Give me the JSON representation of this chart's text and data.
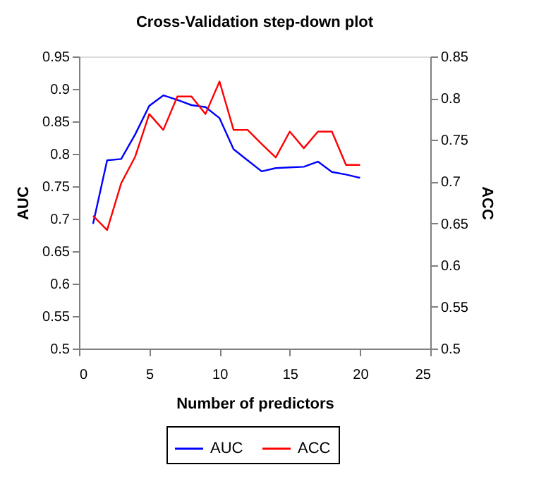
{
  "chart_data": {
    "type": "line",
    "title": "Cross-Validation step-down plot",
    "xlabel": "Number of predictors",
    "ylabel": "AUC",
    "y2label": "ACC",
    "x": [
      1,
      2,
      3,
      4,
      5,
      6,
      7,
      8,
      9,
      10,
      11,
      12,
      13,
      14,
      15,
      16,
      17,
      18,
      19,
      20
    ],
    "series": [
      {
        "name": "AUC",
        "color": "#0000ff",
        "values": [
          0.692,
          0.79,
          0.792,
          0.83,
          0.874,
          0.89,
          0.883,
          0.875,
          0.872,
          0.855,
          0.807,
          0.79,
          0.773,
          0.778,
          0.779,
          0.78,
          0.788,
          0.772,
          0.768,
          0.763
        ]
      },
      {
        "name": "ACC",
        "color": "#ff0000",
        "axis": "y2",
        "values": [
          0.659,
          0.642,
          0.698,
          0.73,
          0.781,
          0.762,
          0.802,
          0.802,
          0.781,
          0.82,
          0.762,
          0.762,
          0.745,
          0.729,
          0.76,
          0.74,
          0.76,
          0.76,
          0.72,
          0.72
        ]
      }
    ],
    "xlim": [
      0,
      25
    ],
    "xticks": [
      0,
      5,
      10,
      15,
      20,
      25
    ],
    "ylim": [
      0.5,
      0.95
    ],
    "yticks": [
      0.5,
      0.55,
      0.6,
      0.65,
      0.7,
      0.75,
      0.8,
      0.85,
      0.9,
      0.95
    ],
    "y2lim": [
      0.5,
      0.85
    ],
    "y2ticks": [
      0.5,
      0.55,
      0.6,
      0.65,
      0.7,
      0.75,
      0.8,
      0.85
    ],
    "grid": false,
    "legend": "bottom",
    "marker": "none",
    "line_style": "solid"
  }
}
